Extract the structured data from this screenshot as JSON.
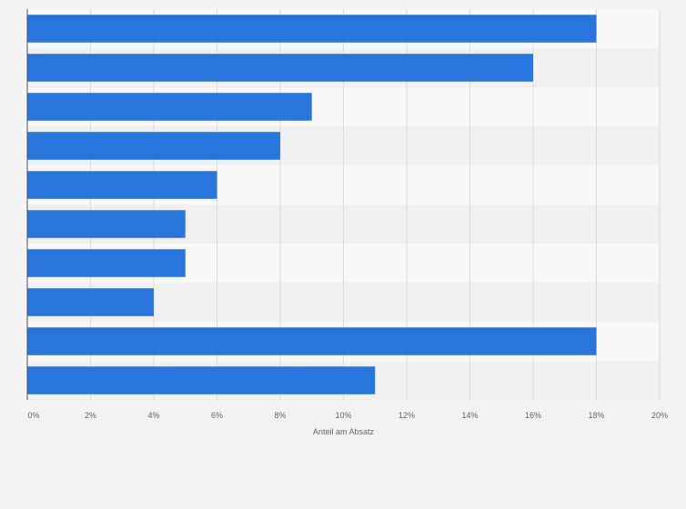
{
  "chart_data": {
    "type": "bar",
    "orientation": "horizontal",
    "categories": [
      "",
      "",
      "",
      "",
      "",
      "",
      "",
      "",
      "",
      ""
    ],
    "values": [
      18,
      16,
      9,
      8,
      6,
      5,
      5,
      4,
      18,
      11
    ],
    "xlabel": "Anteil am Absatz",
    "ylabel": "",
    "xlim": [
      0,
      20
    ],
    "ticks": [
      "0%",
      "2%",
      "4%",
      "6%",
      "8%",
      "10%",
      "12%",
      "14%",
      "16%",
      "18%",
      "20%"
    ],
    "grid": true,
    "colors": {
      "bar": "#2876dd",
      "band_light": "#f8f8f8",
      "band_dark": "#f1f1f1",
      "grid": "#dcdcdc",
      "axis": "#555555",
      "text": "#666666"
    }
  }
}
